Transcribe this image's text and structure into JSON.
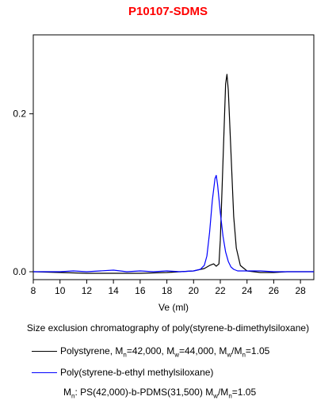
{
  "title": "P10107-SDMS",
  "title_color": "#ff0000",
  "caption": "Size exclusion chromatography of poly(styrene-b-dimethylsiloxane)",
  "legend": [
    {
      "text": "Polystyrene, M",
      "sub1": "n",
      "mid1": "=42,000, M",
      "sub2": "w",
      "mid2": "=44,000,  M",
      "sub3": "w",
      "mid3": "/M",
      "sub4": "n",
      "tail": "=1.05",
      "color": "#000000"
    },
    {
      "text": "Poly(styrene-b-ethyl methylsiloxane)",
      "color": "#0000ff"
    }
  ],
  "note": {
    "a": "M",
    "a_sub": "n",
    "b": ": PS(42,000)-b-PDMS(31,500) M",
    "b_sub": "w",
    "c": "/M",
    "c_sub": "n",
    "d": "=1.05"
  },
  "chart_data": {
    "type": "line",
    "title": "P10107-SDMS",
    "xlabel": "Ve (ml)",
    "ylabel": "",
    "xlim": [
      8,
      29
    ],
    "ylim": [
      -0.01,
      0.3
    ],
    "xticks": [
      8,
      10,
      12,
      14,
      16,
      18,
      20,
      22,
      24,
      26,
      28
    ],
    "yticks": [
      0.0,
      0.2
    ],
    "ytick_labels": [
      "0.0",
      "0.2"
    ],
    "series": [
      {
        "color": "#000000",
        "x": [
          8,
          10,
          12,
          14,
          16,
          18,
          19,
          20,
          20.8,
          21.2,
          21.5,
          21.7,
          21.9,
          22.0,
          22.2,
          22.4,
          22.5,
          22.6,
          22.8,
          23.0,
          23.2,
          23.5,
          24.0,
          24.5,
          25,
          26,
          27,
          28,
          29
        ],
        "y": [
          0.0,
          -0.001,
          -0.002,
          -0.002,
          -0.002,
          -0.001,
          0.0,
          0.001,
          0.004,
          0.008,
          0.01,
          0.007,
          0.01,
          0.04,
          0.14,
          0.238,
          0.25,
          0.23,
          0.15,
          0.07,
          0.03,
          0.008,
          0.001,
          0.0,
          -0.001,
          -0.001,
          0.0,
          0.0,
          0.0
        ]
      },
      {
        "color": "#0000ff",
        "x": [
          8,
          9,
          10,
          11,
          12,
          13,
          14,
          15,
          16,
          17,
          18,
          19,
          20,
          20.5,
          20.8,
          21.0,
          21.2,
          21.4,
          21.6,
          21.7,
          21.8,
          22.0,
          22.2,
          22.4,
          22.6,
          22.8,
          23.0,
          23.3,
          23.6,
          24,
          25,
          26,
          27,
          28,
          29
        ],
        "y": [
          0.0,
          0.0,
          0.0,
          0.001,
          0.0,
          0.001,
          0.002,
          0.0,
          0.001,
          0.0,
          0.001,
          0.0,
          0.001,
          0.003,
          0.008,
          0.02,
          0.05,
          0.09,
          0.118,
          0.122,
          0.11,
          0.075,
          0.045,
          0.025,
          0.013,
          0.006,
          0.003,
          0.001,
          0.001,
          0.001,
          0.001,
          0.0,
          0.0,
          0.0,
          0.0
        ]
      }
    ]
  }
}
